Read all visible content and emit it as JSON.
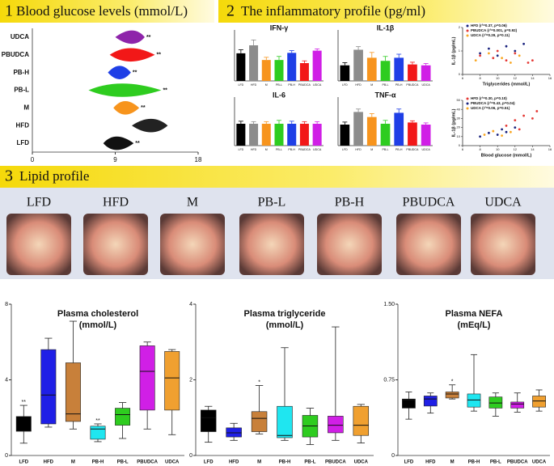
{
  "sections": [
    {
      "number": "1",
      "title": "Blood glucose levels (mmol/L)"
    },
    {
      "number": "2",
      "title": "The inflammatory profile (pg/ml)"
    },
    {
      "number": "3",
      "title": "Lipid profile"
    }
  ],
  "photos": {
    "labels": [
      "LFD",
      "HFD",
      "M",
      "PB-L",
      "PB-H",
      "PBUDCA",
      "UDCA"
    ]
  },
  "chart_data": [
    {
      "type": "violin",
      "categories": [
        "UDCA",
        "PBUDCA",
        "PB-H",
        "PB-L",
        "M",
        "HFD",
        "LFD"
      ],
      "values": [
        11,
        10.5,
        9.5,
        9.5,
        10,
        13,
        9
      ],
      "min": [
        9,
        8.4,
        8.2,
        6.1,
        8.8,
        10.8,
        7.7
      ],
      "max": [
        12.2,
        13.3,
        10.7,
        14,
        11.6,
        14.7,
        11
      ],
      "colors": [
        "#8e24aa",
        "#f21818",
        "#1f3fe6",
        "#2ecc1f",
        "#f7941d",
        "#222222",
        "#111111"
      ],
      "stars": [
        "**",
        "**",
        "**",
        "**",
        "**",
        null,
        "**"
      ],
      "xlim": [
        0,
        18
      ],
      "xticks": [
        0,
        9,
        18
      ]
    },
    {
      "type": "bar",
      "title": "IFN-γ",
      "categories": [
        "LFD",
        "HFD",
        "M",
        "PB-L",
        "PB-H",
        "PBUDCA",
        "UDCA"
      ],
      "values": [
        62,
        80,
        47,
        47,
        63,
        40,
        68
      ],
      "errors": [
        8,
        12,
        6,
        8,
        5,
        5,
        4
      ],
      "colors": [
        "#000000",
        "#8c8c8c",
        "#f7941d",
        "#2ecc1f",
        "#1f3fe6",
        "#f21818",
        "#d01fe6"
      ],
      "ylim": [
        0,
        100
      ]
    },
    {
      "type": "bar",
      "title": "IL-1β",
      "categories": [
        "LFD",
        "HFD",
        "M",
        "PB-L",
        "PB-H",
        "PBUDCA",
        "UDCA"
      ],
      "values": [
        35,
        70,
        52,
        45,
        52,
        37,
        35
      ],
      "errors": [
        6,
        7,
        12,
        10,
        8,
        5,
        4
      ],
      "colors": [
        "#000000",
        "#8c8c8c",
        "#f7941d",
        "#2ecc1f",
        "#1f3fe6",
        "#f21818",
        "#d01fe6"
      ],
      "ylim": [
        0,
        100
      ]
    },
    {
      "type": "bar",
      "title": "IL-6",
      "categories": [
        "LFD",
        "HFD",
        "M",
        "PB-L",
        "PB-H",
        "PBUDCA",
        "UDCA"
      ],
      "values": [
        52,
        52,
        52,
        52,
        52,
        52,
        52
      ],
      "errors": [
        6,
        5,
        5,
        8,
        6,
        5,
        5
      ],
      "colors": [
        "#000000",
        "#8c8c8c",
        "#f7941d",
        "#2ecc1f",
        "#1f3fe6",
        "#f21818",
        "#d01fe6"
      ],
      "ylim": [
        0,
        100
      ]
    },
    {
      "type": "bar",
      "title": "TNF-α",
      "categories": [
        "LFD",
        "HFD",
        "M",
        "PB-L",
        "PB-H",
        "PBUDCA",
        "UDCA"
      ],
      "values": [
        50,
        80,
        68,
        52,
        78,
        55,
        50
      ],
      "errors": [
        6,
        7,
        8,
        8,
        9,
        4,
        4
      ],
      "colors": [
        "#000000",
        "#8c8c8c",
        "#f7941d",
        "#2ecc1f",
        "#1f3fe6",
        "#f21818",
        "#d01fe6"
      ],
      "ylim": [
        0,
        100
      ]
    },
    {
      "type": "scatter",
      "xlabel": "Triglycerides (mmol/L)",
      "ylabel": "IL-1β (pg/mL)",
      "series": [
        {
          "name": "HFD (r²=0.37, p=0.06)",
          "color": "#1a237e",
          "x": [
            8,
            9,
            10,
            11,
            12,
            13
          ],
          "values": [
            0.9,
            1.1,
            0.8,
            1.2,
            1.0,
            1.3
          ]
        },
        {
          "name": "PBUDCA (r²=0.001, p=0.92)",
          "color": "#e53935",
          "x": [
            8,
            9.5,
            10,
            11,
            12,
            13.5,
            14
          ],
          "values": [
            0.8,
            0.7,
            1.0,
            0.6,
            0.9,
            0.5,
            0.6
          ]
        },
        {
          "name": "UDCA (r²=0.29, p=0.11)",
          "color": "#f9a825",
          "x": [
            7.5,
            9,
            10.5,
            11.5,
            12.5
          ],
          "values": [
            0.6,
            0.9,
            0.7,
            0.5,
            0.8
          ]
        }
      ],
      "xlim": [
        6,
        16
      ],
      "xticks": [
        6,
        8,
        10,
        12,
        14,
        16
      ],
      "ylim": [
        0,
        2
      ],
      "yticks": [
        0,
        1,
        2
      ]
    },
    {
      "type": "scatter",
      "xlabel": "Blood glucose (mmol/L)",
      "ylabel": "IL-1β (pg/mL)",
      "series": [
        {
          "name": "HFD (r²=0.30, p=0.10)",
          "color": "#e53935",
          "x": [
            11,
            12,
            12.5,
            13,
            14,
            14.5
          ],
          "values": [
            22,
            28,
            18,
            33,
            30,
            38
          ]
        },
        {
          "name": "PBUDCA (r²=0.43, p=0.04)",
          "color": "#1a237e",
          "x": [
            8,
            9,
            10,
            10.5,
            11,
            12
          ],
          "values": [
            10,
            14,
            12,
            18,
            15,
            20
          ]
        },
        {
          "name": "UDCA (r²=0.06, p=0.51)",
          "color": "#f9a825",
          "x": [
            8.5,
            9.5,
            10.5,
            11.5
          ],
          "values": [
            12,
            16,
            11,
            15
          ]
        }
      ],
      "xlim": [
        6,
        16
      ],
      "xticks": [
        6,
        8,
        10,
        12,
        14,
        16
      ],
      "ylim": [
        0,
        50
      ],
      "yticks": [
        0,
        10,
        20,
        30,
        40,
        50
      ]
    },
    {
      "type": "box",
      "title": "Plasma cholesterol",
      "subtitle": "(mmol/L)",
      "categories": [
        "LFD",
        "HFD",
        "M",
        "PB-H",
        "PB-L",
        "PBUDCA",
        "UDCA"
      ],
      "min": [
        0.65,
        1.5,
        1.4,
        0.73,
        0.9,
        1.4,
        1.1
      ],
      "q1": [
        1.28,
        1.67,
        1.8,
        0.86,
        1.6,
        2.4,
        2.4
      ],
      "median": [
        1.3,
        3.2,
        2.2,
        1.4,
        2.16,
        4.45,
        4.1
      ],
      "q3": [
        2.06,
        5.6,
        4.9,
        1.55,
        2.5,
        5.8,
        5.5
      ],
      "max": [
        2.65,
        6.2,
        7.1,
        1.67,
        2.8,
        6.0,
        5.6
      ],
      "colors": [
        "#000000",
        "#1f1fe6",
        "#c8803a",
        "#1fe6f0",
        "#2ecc1f",
        "#d01fe6",
        "#f0a030"
      ],
      "stars": [
        "**",
        null,
        null,
        "**",
        null,
        null,
        null
      ],
      "ylim": [
        0,
        8
      ],
      "yticks": [
        0,
        4,
        8
      ]
    },
    {
      "type": "box",
      "title": "Plasma triglyceride",
      "subtitle": "(mmol/L)",
      "categories": [
        "LFD",
        "HFD",
        "M",
        "PB-H",
        "PB-L",
        "PBUDCA",
        "UDCA"
      ],
      "min": [
        0.35,
        0.4,
        0.57,
        0.4,
        0.29,
        0.4,
        0.33
      ],
      "q1": [
        0.63,
        0.49,
        0.63,
        0.47,
        0.49,
        0.6,
        0.53
      ],
      "median": [
        1.0,
        0.6,
        0.98,
        0.53,
        0.78,
        0.8,
        0.8
      ],
      "q3": [
        1.2,
        0.73,
        1.16,
        1.3,
        1.06,
        1.04,
        1.3
      ],
      "max": [
        1.3,
        0.85,
        1.85,
        2.85,
        1.25,
        3.4,
        1.35
      ],
      "colors": [
        "#000000",
        "#1f1fe6",
        "#c8803a",
        "#1fe6f0",
        "#2ecc1f",
        "#d01fe6",
        "#f0a030"
      ],
      "stars": [
        null,
        null,
        "*",
        null,
        null,
        null,
        null
      ],
      "ylim": [
        0,
        4
      ],
      "yticks": [
        0,
        2,
        4
      ]
    },
    {
      "type": "box",
      "title": "Plasma NEFA",
      "subtitle": "(mEq/L)",
      "categories": [
        "LFD",
        "HFD",
        "M",
        "PB-H",
        "PB-L",
        "PBUDCA",
        "UDCA"
      ],
      "min": [
        0.36,
        0.42,
        0.56,
        0.44,
        0.39,
        0.43,
        0.44
      ],
      "q1": [
        0.47,
        0.49,
        0.57,
        0.48,
        0.47,
        0.47,
        0.48
      ],
      "median": [
        0.55,
        0.56,
        0.61,
        0.55,
        0.52,
        0.51,
        0.54
      ],
      "q3": [
        0.56,
        0.59,
        0.63,
        0.61,
        0.58,
        0.53,
        0.59
      ],
      "max": [
        0.63,
        0.62,
        0.7,
        1.0,
        0.62,
        0.62,
        0.65
      ],
      "colors": [
        "#000000",
        "#1f1fe6",
        "#c8803a",
        "#1fe6f0",
        "#2ecc1f",
        "#d01fe6",
        "#f0a030"
      ],
      "stars": [
        null,
        null,
        "*",
        null,
        null,
        null,
        null
      ],
      "ylim": [
        0,
        1.5
      ],
      "yticks": [
        0,
        0.75,
        {
          "value": 1.5,
          "label": "1.50"
        }
      ]
    }
  ]
}
